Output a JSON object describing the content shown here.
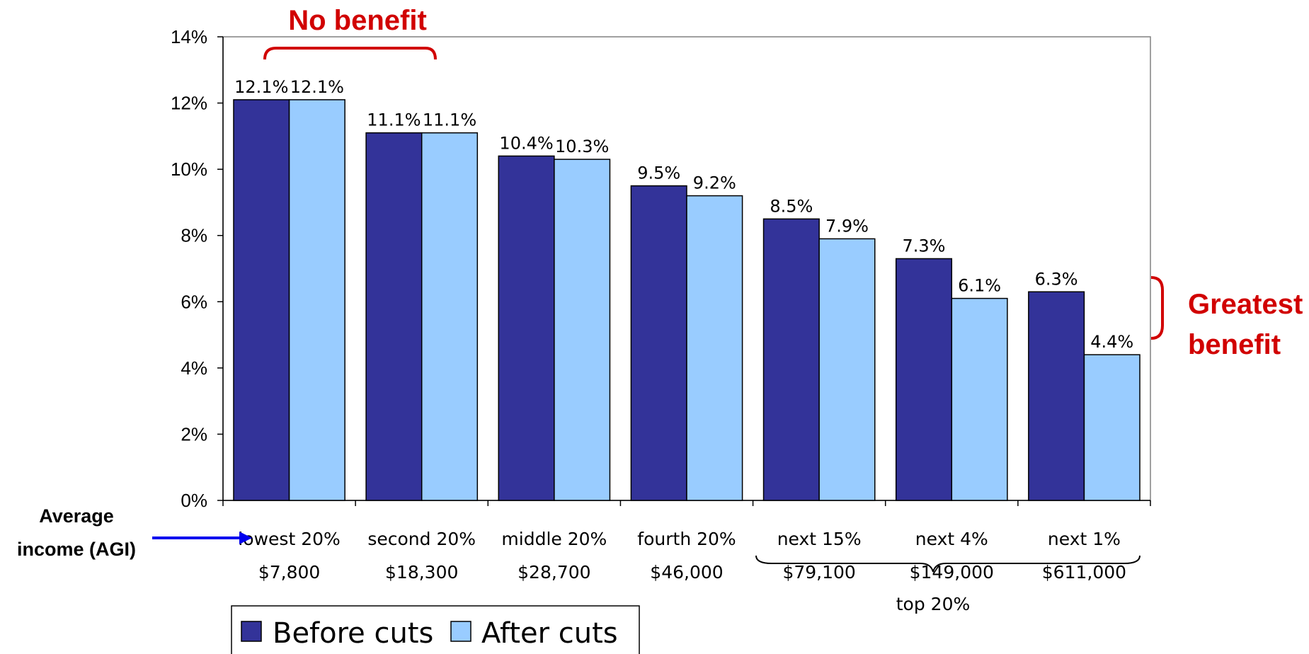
{
  "chart_data": {
    "type": "bar",
    "ylim": [
      0,
      14
    ],
    "y_ticks": [
      "0%",
      "2%",
      "4%",
      "6%",
      "8%",
      "10%",
      "12%",
      "14%"
    ],
    "categories": [
      "lowest 20%",
      "second 20%",
      "middle 20%",
      "fourth 20%",
      "next 15%",
      "next 4%",
      "next 1%"
    ],
    "average_incomes": [
      "$7,800",
      "$18,300",
      "$28,700",
      "$46,000",
      "$79,100",
      "$149,000",
      "$611,000"
    ],
    "series": [
      {
        "name": "Before cuts",
        "color": "#333399",
        "values": [
          12.1,
          11.1,
          10.4,
          9.5,
          8.5,
          7.3,
          6.3
        ],
        "labels": [
          "12.1%",
          "11.1%",
          "10.4%",
          "9.5%",
          "8.5%",
          "7.3%",
          "6.3%"
        ]
      },
      {
        "name": "After cuts",
        "color": "#99ccff",
        "values": [
          12.1,
          11.1,
          10.3,
          9.2,
          7.9,
          6.1,
          4.4
        ],
        "labels": [
          "12.1%",
          "11.1%",
          "10.3%",
          "9.2%",
          "7.9%",
          "6.1%",
          "4.4%"
        ]
      }
    ],
    "legend_position": "bottom-left",
    "grid": false
  },
  "annotations": {
    "no_benefit": "No benefit",
    "greatest_benefit_line1": "Greatest",
    "greatest_benefit_line2": "benefit",
    "avg_income_line1": "Average",
    "avg_income_line2": "income (AGI)",
    "top_group": "top 20%"
  },
  "colors": {
    "annotation_red": "#d10000",
    "arrow_blue": "#0000ee"
  }
}
